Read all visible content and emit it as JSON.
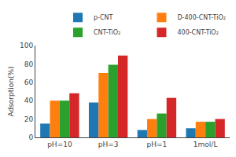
{
  "chart_data": {
    "type": "bar",
    "categories": [
      "pH=10",
      "pH=3",
      "pH=1",
      "1mol/L"
    ],
    "series": [
      {
        "name": "p-CNT",
        "values": [
          15,
          38,
          8,
          10
        ]
      },
      {
        "name": "D-400-CNT-TiO₂",
        "values": [
          40,
          70,
          20,
          17
        ]
      },
      {
        "name": "CNT-TiO₂",
        "values": [
          40,
          79,
          26,
          17
        ]
      },
      {
        "name": "400-CNT-TiO₂",
        "values": [
          48,
          89,
          43,
          20
        ]
      }
    ],
    "ylabel": "Adsorption(%)",
    "ylim": [
      0,
      100
    ],
    "yticks": [
      0,
      20,
      40,
      60,
      80,
      100
    ],
    "grid": false,
    "legend": "upper right"
  }
}
